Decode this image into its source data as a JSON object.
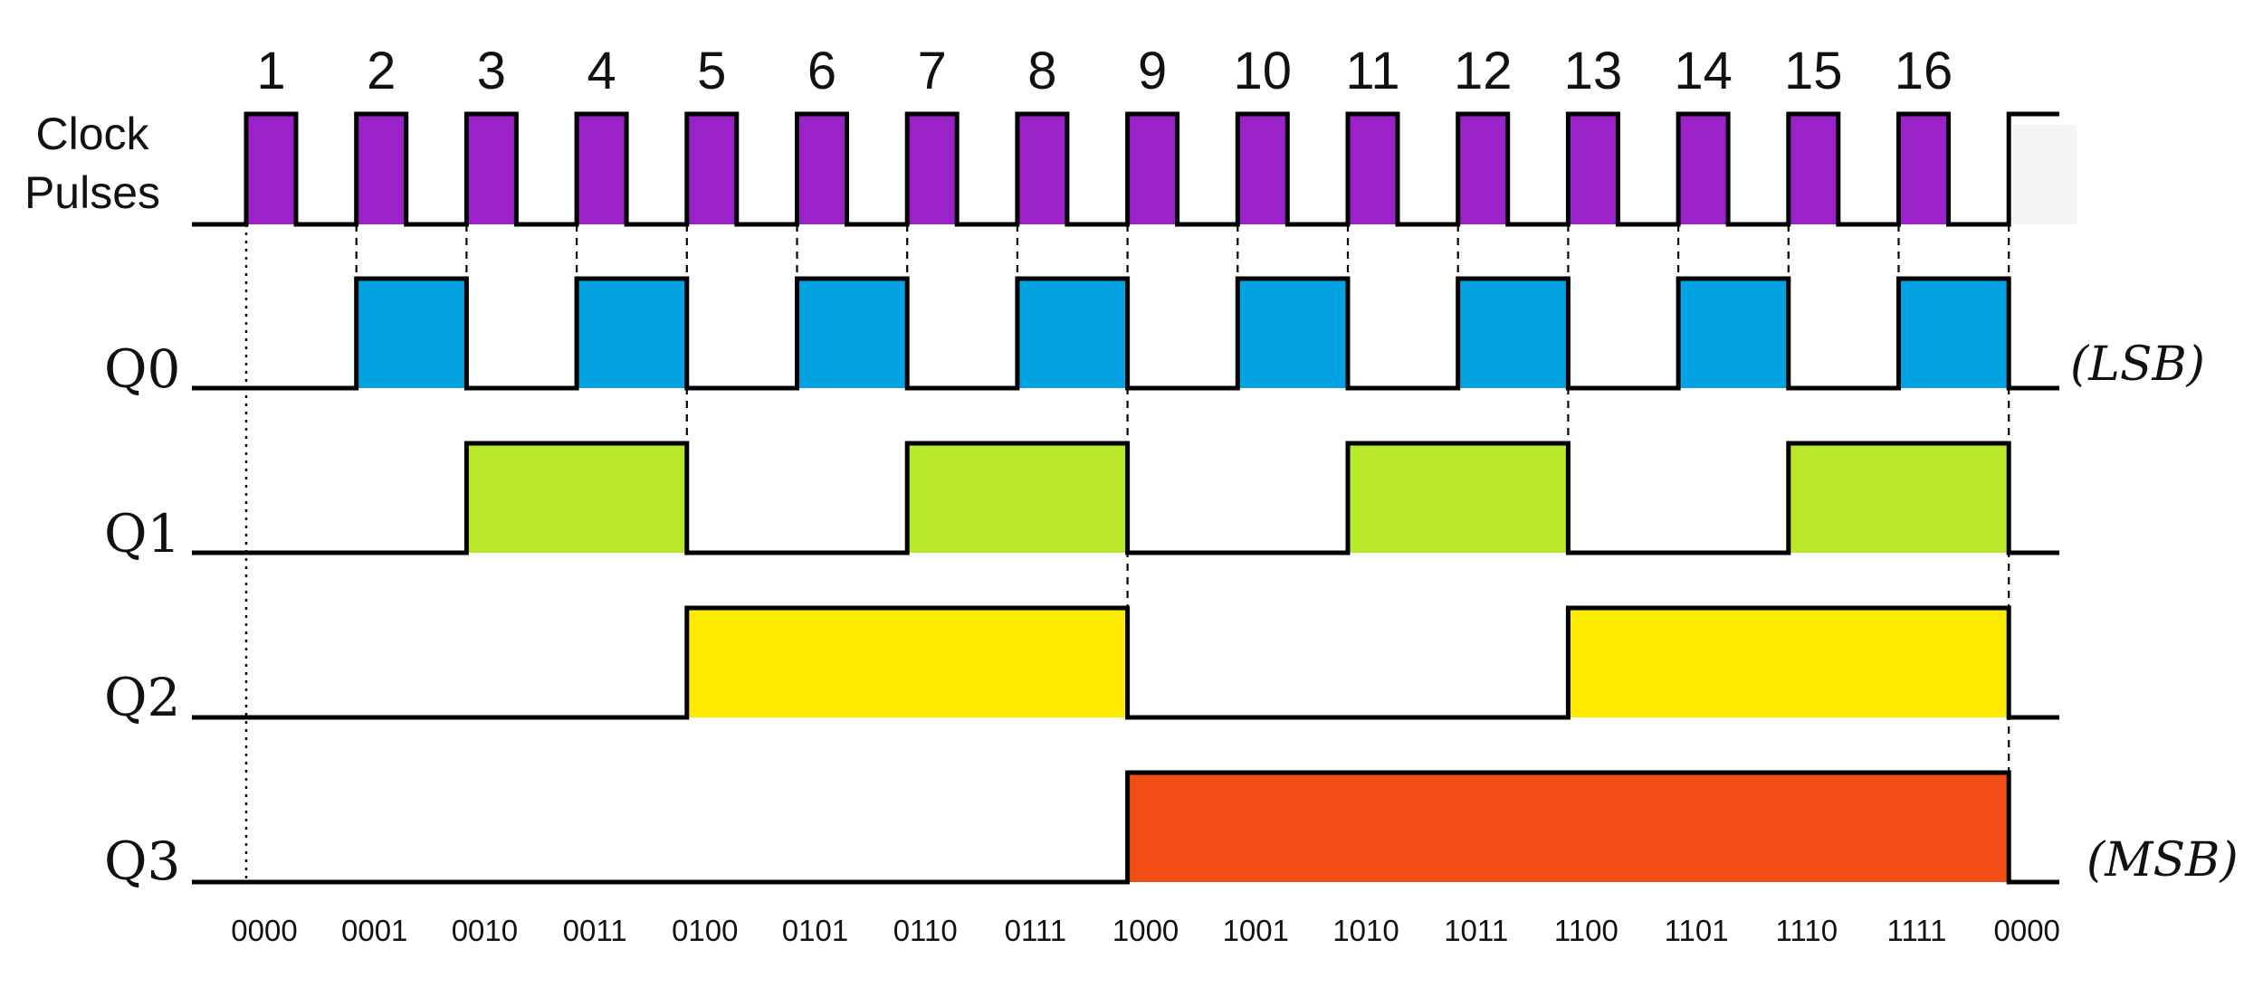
{
  "clock": {
    "label_line1": "Clock",
    "label_line2": "Pulses",
    "pulse_numbers": [
      "1",
      "2",
      "3",
      "4",
      "5",
      "6",
      "7",
      "8",
      "9",
      "10",
      "11",
      "12",
      "13",
      "14",
      "15",
      "16"
    ],
    "color": "#9B22C8"
  },
  "signals": [
    {
      "id": "q0",
      "label": "Q0",
      "color": "#03A3E3",
      "period_pulses": 2,
      "note": "(LSB)"
    },
    {
      "id": "q1",
      "label": "Q1",
      "color": "#B8E82A",
      "period_pulses": 4,
      "note": ""
    },
    {
      "id": "q2",
      "label": "Q2",
      "color": "#FFEB00",
      "period_pulses": 8,
      "note": ""
    },
    {
      "id": "q3",
      "label": "Q3",
      "color": "#F04E16",
      "period_pulses": 16,
      "note": "(MSB)"
    }
  ],
  "states": [
    "0000",
    "0001",
    "0010",
    "0011",
    "0100",
    "0101",
    "0110",
    "0111",
    "1000",
    "1001",
    "1010",
    "1011",
    "1100",
    "1101",
    "1110",
    "1111",
    "0000"
  ]
}
